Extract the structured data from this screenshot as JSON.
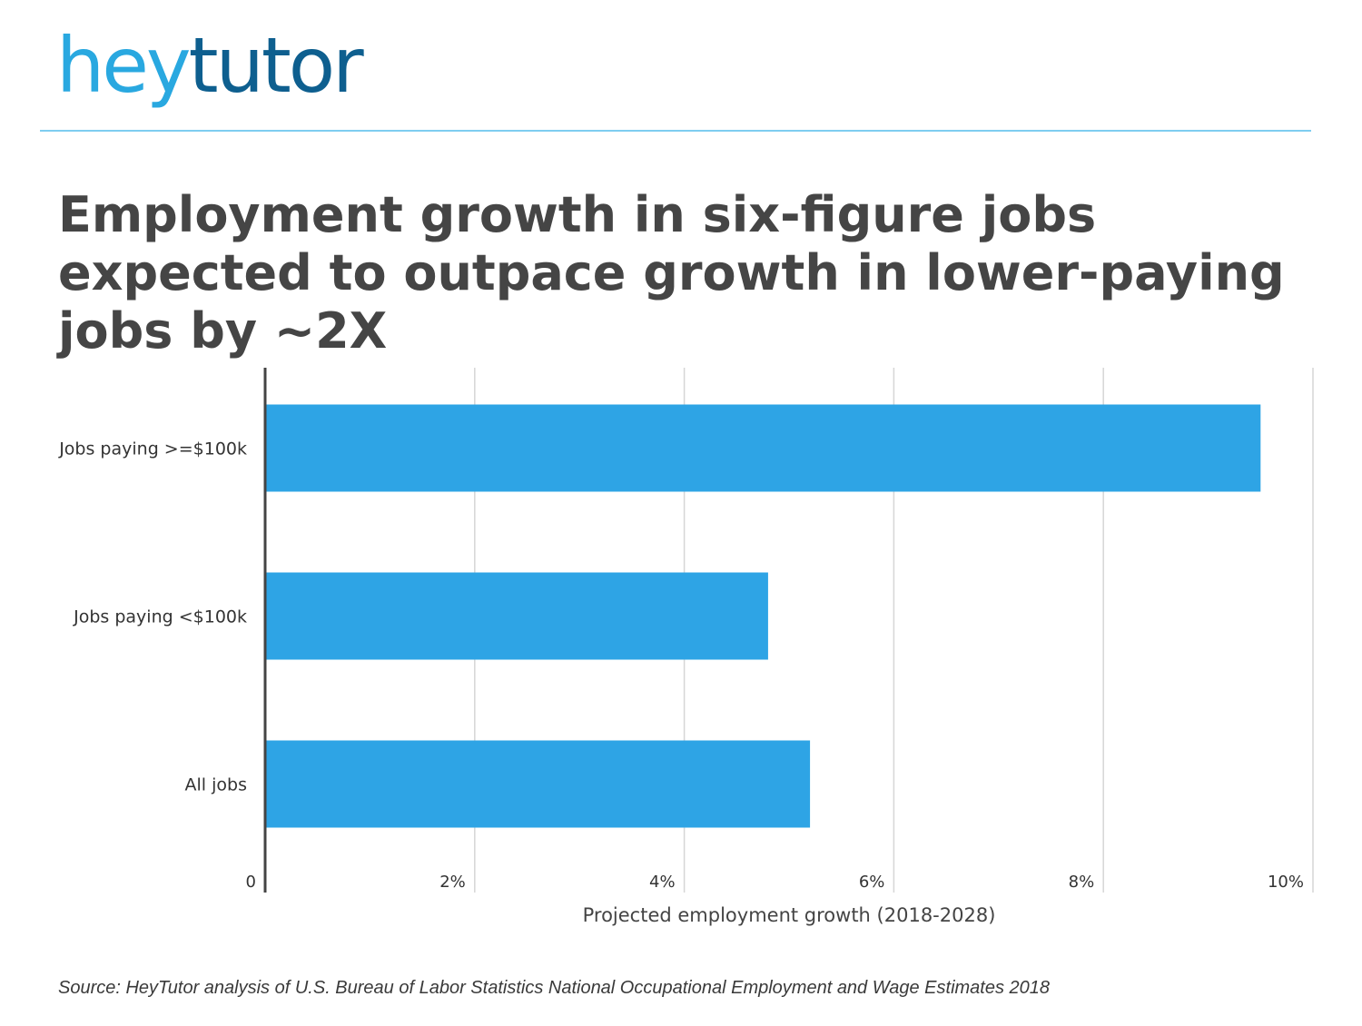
{
  "logo": {
    "part1": "hey",
    "part2": "tutor"
  },
  "title": "Employment growth in six-figure jobs expected to outpace growth in lower-paying jobs by ~2X",
  "source": "Source: HeyTutor analysis of U.S. Bureau of Labor Statistics National Occupational Employment and Wage Estimates  2018",
  "colors": {
    "bar": "#2ea4e5",
    "logo_light": "#29a8e0",
    "logo_dark": "#0e5f8f",
    "title": "#454545"
  },
  "chart_data": {
    "type": "bar",
    "orientation": "horizontal",
    "categories": [
      "Jobs paying >=$100k",
      "Jobs paying <$100k",
      "All jobs"
    ],
    "values": [
      9.5,
      4.8,
      5.2
    ],
    "xlabel": "Projected employment growth (2018-2028)",
    "xlim": [
      0,
      10
    ],
    "xticks": [
      0,
      2,
      4,
      6,
      8,
      10
    ],
    "xtick_labels": [
      "0",
      "2%",
      "4%",
      "6%",
      "8%",
      "10%"
    ],
    "grid": true
  }
}
